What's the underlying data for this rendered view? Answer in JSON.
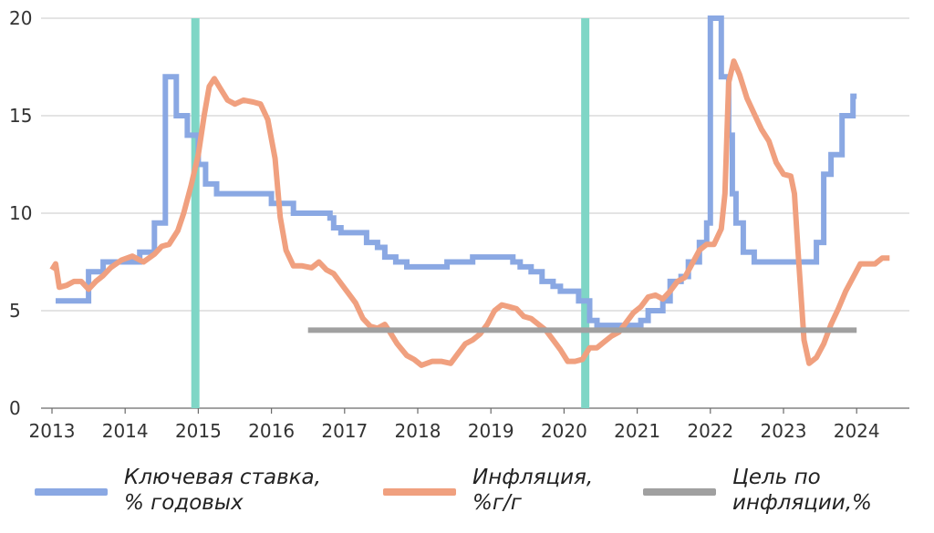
{
  "chart_data": {
    "type": "line",
    "title": "",
    "xlabel": "",
    "ylabel": "",
    "ylim": [
      0,
      20
    ],
    "xlim": [
      2013.0,
      2024.0
    ],
    "y_ticks": [
      "0",
      "5",
      "10",
      "15",
      "20"
    ],
    "x_ticks": [
      "2013",
      "2014",
      "2015",
      "2016",
      "2017",
      "2018",
      "2019",
      "2020",
      "2021",
      "2022",
      "2023",
      "2024"
    ],
    "grid": "horizontal",
    "legend_position": "bottom",
    "vertical_markers": [
      2014.96,
      2020.29
    ],
    "series": [
      {
        "name": "Ключевая ставка, % годовых",
        "color": "#8aa8e3",
        "step": true,
        "points": [
          [
            2013.05,
            5.5
          ],
          [
            2013.5,
            7.0
          ],
          [
            2013.7,
            7.5
          ],
          [
            2014.2,
            8.0
          ],
          [
            2014.4,
            9.5
          ],
          [
            2014.55,
            9.5
          ],
          [
            2014.55,
            17.0
          ],
          [
            2014.7,
            15.0
          ],
          [
            2014.85,
            14.0
          ],
          [
            2015.0,
            12.5
          ],
          [
            2015.1,
            11.5
          ],
          [
            2015.25,
            11.0
          ],
          [
            2016.0,
            10.5
          ],
          [
            2016.3,
            10.0
          ],
          [
            2016.8,
            9.75
          ],
          [
            2016.85,
            9.25
          ],
          [
            2016.95,
            9.0
          ],
          [
            2017.3,
            8.5
          ],
          [
            2017.45,
            8.25
          ],
          [
            2017.55,
            7.75
          ],
          [
            2017.7,
            7.5
          ],
          [
            2017.85,
            7.25
          ],
          [
            2018.4,
            7.5
          ],
          [
            2018.75,
            7.75
          ],
          [
            2019.3,
            7.5
          ],
          [
            2019.4,
            7.25
          ],
          [
            2019.55,
            7.0
          ],
          [
            2019.7,
            6.5
          ],
          [
            2019.85,
            6.25
          ],
          [
            2019.95,
            6.0
          ],
          [
            2020.2,
            5.5
          ],
          [
            2020.35,
            4.5
          ],
          [
            2020.45,
            4.25
          ],
          [
            2021.05,
            4.5
          ],
          [
            2021.15,
            5.0
          ],
          [
            2021.35,
            5.5
          ],
          [
            2021.45,
            6.5
          ],
          [
            2021.6,
            6.75
          ],
          [
            2021.7,
            7.5
          ],
          [
            2021.85,
            8.5
          ],
          [
            2021.95,
            9.5
          ],
          [
            2022.0,
            20.0
          ],
          [
            2022.15,
            17.0
          ],
          [
            2022.25,
            14.0
          ],
          [
            2022.3,
            11.0
          ],
          [
            2022.35,
            9.5
          ],
          [
            2022.45,
            8.0
          ],
          [
            2022.6,
            7.5
          ],
          [
            2023.45,
            8.5
          ],
          [
            2023.55,
            12.0
          ],
          [
            2023.65,
            13.0
          ],
          [
            2023.8,
            15.0
          ],
          [
            2023.95,
            16.0
          ],
          [
            2024.0,
            16.0
          ]
        ]
      },
      {
        "name": "Инфляция, %г/г",
        "color": "#f0a07f",
        "step": false,
        "points": [
          [
            2013.0,
            7.1
          ],
          [
            2013.05,
            7.4
          ],
          [
            2013.1,
            6.2
          ],
          [
            2013.2,
            6.3
          ],
          [
            2013.3,
            6.5
          ],
          [
            2013.4,
            6.5
          ],
          [
            2013.5,
            6.1
          ],
          [
            2013.6,
            6.5
          ],
          [
            2013.7,
            6.8
          ],
          [
            2013.8,
            7.2
          ],
          [
            2013.95,
            7.6
          ],
          [
            2014.1,
            7.8
          ],
          [
            2014.25,
            7.5
          ],
          [
            2014.4,
            7.9
          ],
          [
            2014.5,
            8.3
          ],
          [
            2014.6,
            8.4
          ],
          [
            2014.72,
            9.1
          ],
          [
            2014.8,
            10.0
          ],
          [
            2014.9,
            11.4
          ],
          [
            2015.0,
            13.0
          ],
          [
            2015.08,
            15.0
          ],
          [
            2015.15,
            16.5
          ],
          [
            2015.22,
            16.9
          ],
          [
            2015.3,
            16.4
          ],
          [
            2015.4,
            15.8
          ],
          [
            2015.5,
            15.6
          ],
          [
            2015.62,
            15.8
          ],
          [
            2015.75,
            15.7
          ],
          [
            2015.85,
            15.6
          ],
          [
            2015.95,
            14.8
          ],
          [
            2016.05,
            12.8
          ],
          [
            2016.12,
            9.8
          ],
          [
            2016.2,
            8.1
          ],
          [
            2016.3,
            7.3
          ],
          [
            2016.42,
            7.3
          ],
          [
            2016.55,
            7.2
          ],
          [
            2016.65,
            7.5
          ],
          [
            2016.75,
            7.1
          ],
          [
            2016.85,
            6.9
          ],
          [
            2016.95,
            6.4
          ],
          [
            2017.05,
            5.9
          ],
          [
            2017.15,
            5.4
          ],
          [
            2017.25,
            4.6
          ],
          [
            2017.35,
            4.2
          ],
          [
            2017.45,
            4.1
          ],
          [
            2017.55,
            4.3
          ],
          [
            2017.62,
            3.9
          ],
          [
            2017.72,
            3.3
          ],
          [
            2017.85,
            2.7
          ],
          [
            2017.95,
            2.5
          ],
          [
            2018.05,
            2.2
          ],
          [
            2018.2,
            2.4
          ],
          [
            2018.32,
            2.4
          ],
          [
            2018.45,
            2.3
          ],
          [
            2018.55,
            2.8
          ],
          [
            2018.65,
            3.3
          ],
          [
            2018.75,
            3.5
          ],
          [
            2018.85,
            3.8
          ],
          [
            2018.95,
            4.3
          ],
          [
            2019.05,
            5.0
          ],
          [
            2019.15,
            5.3
          ],
          [
            2019.25,
            5.2
          ],
          [
            2019.35,
            5.1
          ],
          [
            2019.45,
            4.7
          ],
          [
            2019.55,
            4.6
          ],
          [
            2019.65,
            4.3
          ],
          [
            2019.75,
            4.0
          ],
          [
            2019.85,
            3.5
          ],
          [
            2019.95,
            3.0
          ],
          [
            2020.05,
            2.4
          ],
          [
            2020.15,
            2.4
          ],
          [
            2020.25,
            2.5
          ],
          [
            2020.35,
            3.1
          ],
          [
            2020.45,
            3.1
          ],
          [
            2020.55,
            3.4
          ],
          [
            2020.65,
            3.7
          ],
          [
            2020.75,
            3.9
          ],
          [
            2020.85,
            4.4
          ],
          [
            2020.95,
            4.9
          ],
          [
            2021.05,
            5.2
          ],
          [
            2021.15,
            5.7
          ],
          [
            2021.25,
            5.8
          ],
          [
            2021.35,
            5.6
          ],
          [
            2021.45,
            6.0
          ],
          [
            2021.55,
            6.5
          ],
          [
            2021.65,
            6.7
          ],
          [
            2021.75,
            7.4
          ],
          [
            2021.85,
            8.1
          ],
          [
            2021.95,
            8.4
          ],
          [
            2022.05,
            8.4
          ],
          [
            2022.15,
            9.2
          ],
          [
            2022.2,
            11.0
          ],
          [
            2022.25,
            16.7
          ],
          [
            2022.32,
            17.8
          ],
          [
            2022.4,
            17.1
          ],
          [
            2022.5,
            15.9
          ],
          [
            2022.6,
            15.1
          ],
          [
            2022.7,
            14.3
          ],
          [
            2022.8,
            13.7
          ],
          [
            2022.9,
            12.6
          ],
          [
            2023.0,
            12.0
          ],
          [
            2023.1,
            11.9
          ],
          [
            2023.15,
            11.0
          ],
          [
            2023.2,
            8.0
          ],
          [
            2023.28,
            3.5
          ],
          [
            2023.35,
            2.3
          ],
          [
            2023.45,
            2.6
          ],
          [
            2023.55,
            3.3
          ],
          [
            2023.65,
            4.3
          ],
          [
            2023.75,
            5.1
          ],
          [
            2023.85,
            6.0
          ],
          [
            2023.95,
            6.7
          ],
          [
            2024.05,
            7.4
          ],
          [
            2024.15,
            7.4
          ],
          [
            2024.25,
            7.4
          ],
          [
            2024.35,
            7.7
          ],
          [
            2024.45,
            7.7
          ]
        ]
      },
      {
        "name": "Цель по инфляции,%",
        "color": "#a0a0a0",
        "step": false,
        "points": [
          [
            2016.5,
            4.0
          ],
          [
            2024.0,
            4.0
          ]
        ]
      }
    ]
  },
  "legend": [
    {
      "label": "Ключевая ставка,\n% годовых",
      "color": "#8aa8e3"
    },
    {
      "label": "Инфляция,\n%г/г",
      "color": "#f0a07f"
    },
    {
      "label": "Цель по\nинфляции,%",
      "color": "#a0a0a0"
    }
  ],
  "colors": {
    "grid": "#c8c8c8",
    "axis": "#6a6a6a",
    "marker": "#7fd6c6",
    "text": "#333333"
  }
}
